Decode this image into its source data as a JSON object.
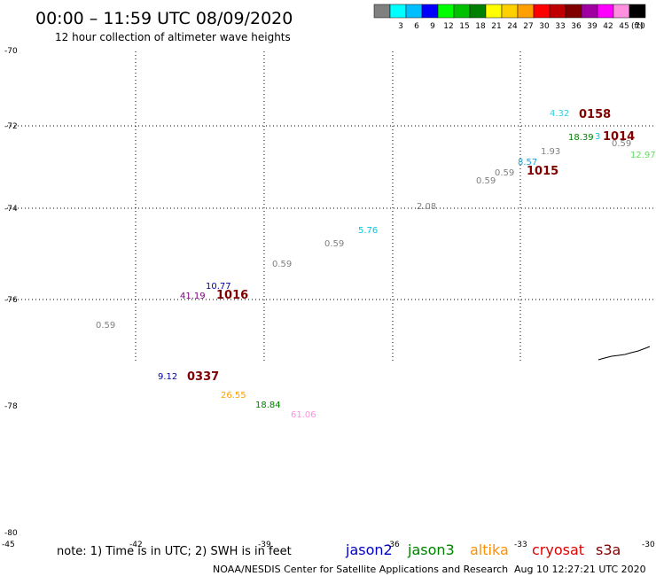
{
  "header": {
    "title": "00:00 – 11:59 UTC 08/09/2020",
    "subtitle": "12 hour collection of altimeter wave heights"
  },
  "color_scale": {
    "unit": "(ft)",
    "bins": [
      {
        "label": "",
        "color": "#808080"
      },
      {
        "label": "3",
        "color": "#00ffff"
      },
      {
        "label": "6",
        "color": "#00bfff"
      },
      {
        "label": "9",
        "color": "#0000ff"
      },
      {
        "label": "12",
        "color": "#00ff00"
      },
      {
        "label": "15",
        "color": "#00c000"
      },
      {
        "label": "18",
        "color": "#008000"
      },
      {
        "label": "21",
        "color": "#ffff00"
      },
      {
        "label": "24",
        "color": "#ffd000"
      },
      {
        "label": "27",
        "color": "#ffa000"
      },
      {
        "label": "30",
        "color": "#ff0000"
      },
      {
        "label": "33",
        "color": "#c00000"
      },
      {
        "label": "36",
        "color": "#800000"
      },
      {
        "label": "39",
        "color": "#a000a0"
      },
      {
        "label": "42",
        "color": "#ff00ff"
      },
      {
        "label": "45",
        "color": "#ff90e0"
      },
      {
        "label": "70",
        "color": "#000000"
      }
    ]
  },
  "lat_labels": [
    "-70",
    "-72",
    "-74",
    "-76",
    "-78",
    "-80"
  ],
  "lon_labels": [
    "-45",
    "-42",
    "-39",
    "-36",
    "-33",
    "-30"
  ],
  "observations": [
    {
      "text": "4.32",
      "color": "#30d0e0",
      "kind": "value"
    },
    {
      "text": "0158",
      "color": "#800000",
      "kind": "time"
    },
    {
      "text": "18.39",
      "color": "#008000",
      "kind": "value"
    },
    {
      "text": "3",
      "color": "#00c8e0",
      "kind": "value"
    },
    {
      "text": "1014",
      "color": "#800000",
      "kind": "time"
    },
    {
      "text": "0.59",
      "color": "#808080",
      "kind": "value"
    },
    {
      "text": "12.97",
      "color": "#60e060",
      "kind": "value"
    },
    {
      "text": "1.93",
      "color": "#808080",
      "kind": "value"
    },
    {
      "text": "8.57",
      "color": "#20a0e0",
      "kind": "value"
    },
    {
      "text": "0.59",
      "color": "#808080",
      "kind": "value"
    },
    {
      "text": "1015",
      "color": "#800000",
      "kind": "time"
    },
    {
      "text": "0.59",
      "color": "#808080",
      "kind": "value"
    },
    {
      "text": "2.08",
      "color": "#808080",
      "kind": "value"
    },
    {
      "text": "5.76",
      "color": "#00c8e0",
      "kind": "value"
    },
    {
      "text": "0.59",
      "color": "#808080",
      "kind": "value"
    },
    {
      "text": "0.59",
      "color": "#808080",
      "kind": "value"
    },
    {
      "text": "10.77",
      "color": "#0000a0",
      "kind": "value"
    },
    {
      "text": "41.19",
      "color": "#800080",
      "kind": "value"
    },
    {
      "text": "1016",
      "color": "#800000",
      "kind": "time"
    },
    {
      "text": "0.59",
      "color": "#808080",
      "kind": "value"
    },
    {
      "text": "9.12",
      "color": "#0000a0",
      "kind": "value"
    },
    {
      "text": "0337",
      "color": "#800000",
      "kind": "time"
    },
    {
      "text": "26.55",
      "color": "#ffa000",
      "kind": "value"
    },
    {
      "text": "18.84",
      "color": "#008000",
      "kind": "value"
    },
    {
      "text": "61.06",
      "color": "#ff90e0",
      "kind": "value"
    }
  ],
  "footer": {
    "note": "note: 1) Time is in UTC; 2) SWH is in feet",
    "legend": [
      {
        "label": "jason2",
        "color": "#0000c0"
      },
      {
        "label": "jason3",
        "color": "#008000"
      },
      {
        "label": "altika",
        "color": "#ff9000"
      },
      {
        "label": "cryosat",
        "color": "#e00000"
      },
      {
        "label": "s3a",
        "color": "#800000"
      }
    ],
    "credit": "NOAA/NESDIS Center for Satellite Applications and Research",
    "timestamp": "Aug 10 12:27:21 UTC 2020"
  }
}
